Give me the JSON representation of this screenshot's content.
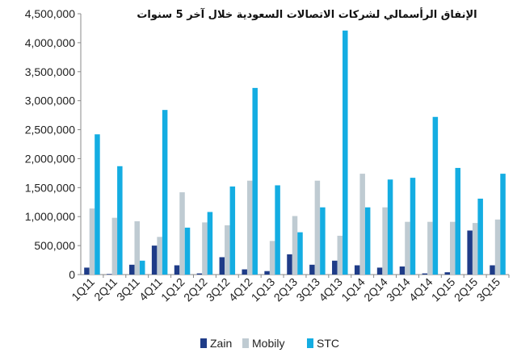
{
  "chart_data": {
    "type": "bar",
    "title": "الإنفاق الرأسمالي لشركات الاتصالات السعودية خلال آخر 5 سنوات",
    "xlabel": "",
    "ylabel": "",
    "ylim": [
      0,
      4500000
    ],
    "yticks": [
      0,
      500000,
      1000000,
      1500000,
      2000000,
      2500000,
      3000000,
      3500000,
      4000000,
      4500000
    ],
    "ytick_labels": [
      "0",
      "500,000",
      "1,000,000",
      "1,500,000",
      "2,000,000",
      "2,500,000",
      "3,000,000",
      "3,500,000",
      "4,000,000",
      "4,500,000"
    ],
    "grid": false,
    "legend_position": "bottom",
    "categories": [
      "1Q11",
      "2Q11",
      "3Q11",
      "4Q11",
      "1Q12",
      "2Q12",
      "3Q12",
      "4Q12",
      "1Q13",
      "2Q13",
      "3Q13",
      "4Q13",
      "1Q14",
      "2Q14",
      "3Q14",
      "4Q14",
      "1Q15",
      "2Q15",
      "3Q15"
    ],
    "series": [
      {
        "name": "Zain",
        "color": "#1F3C88",
        "values": [
          120000,
          10000,
          170000,
          500000,
          160000,
          20000,
          300000,
          90000,
          60000,
          350000,
          170000,
          240000,
          160000,
          120000,
          140000,
          20000,
          40000,
          760000,
          160000
        ]
      },
      {
        "name": "Mobily",
        "color": "#BFCBD2",
        "values": [
          1140000,
          980000,
          920000,
          650000,
          1420000,
          900000,
          850000,
          1620000,
          580000,
          1010000,
          1620000,
          670000,
          1740000,
          1160000,
          910000,
          910000,
          910000,
          890000,
          950000
        ]
      },
      {
        "name": "STC",
        "color": "#14ADE2",
        "values": [
          2420000,
          1870000,
          240000,
          2840000,
          810000,
          1080000,
          1520000,
          3220000,
          1540000,
          730000,
          1160000,
          4210000,
          1160000,
          1640000,
          1670000,
          2720000,
          1840000,
          1310000,
          1740000
        ]
      }
    ]
  }
}
